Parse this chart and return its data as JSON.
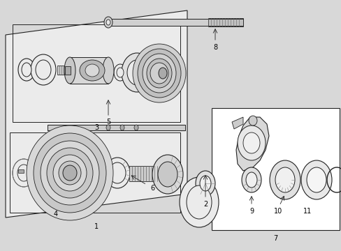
{
  "bg_color": "#d8d8d8",
  "box_fill": "#f0f0f0",
  "line_color": "#222222",
  "label_color": "#000000",
  "shadow_color": "#c0c0c0",
  "part_color": "#e8e8e8",
  "dark_part": "#888888",
  "mid_part": "#bbbbbb"
}
